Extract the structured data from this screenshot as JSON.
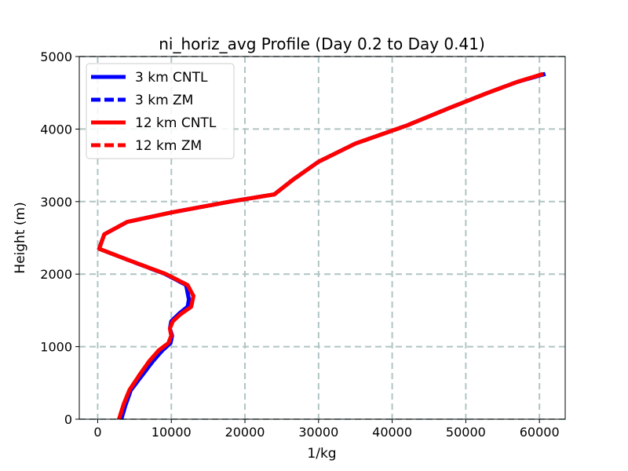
{
  "chart_data": {
    "type": "line",
    "title": "ni_horiz_avg Profile (Day 0.2 to Day 0.41)",
    "xlabel": "1/kg",
    "ylabel": "Height (m)",
    "xlim": [
      -2500,
      63500
    ],
    "ylim": [
      0,
      5000
    ],
    "xticks": [
      0,
      10000,
      20000,
      30000,
      40000,
      50000,
      60000
    ],
    "yticks": [
      0,
      1000,
      2000,
      3000,
      4000,
      5000
    ],
    "grid": true,
    "legend_position": "upper-left",
    "series": [
      {
        "name": "3 km CNTL",
        "color": "#0000ff",
        "style": "solid",
        "x": [
          3200,
          3800,
          4500,
          6000,
          7500,
          8800,
          9900,
          10100,
          9800,
          10000,
          11000,
          12200,
          12400,
          12000,
          9200,
          4000,
          200,
          900,
          4000,
          10000,
          18000,
          24000,
          26500,
          30000,
          35000,
          42000,
          48000,
          53000,
          57000,
          60800
        ],
        "y": [
          0,
          200,
          400,
          600,
          800,
          950,
          1050,
          1150,
          1250,
          1350,
          1450,
          1550,
          1650,
          1850,
          2000,
          2200,
          2350,
          2550,
          2720,
          2850,
          3000,
          3100,
          3300,
          3550,
          3800,
          4050,
          4300,
          4500,
          4650,
          4760
        ]
      },
      {
        "name": "3 km ZM",
        "color": "#0000ff",
        "style": "dashed",
        "x": [
          3200,
          3800,
          4500,
          6000,
          7500,
          8800,
          9900,
          10100,
          9800,
          10000,
          11000,
          12200,
          12400,
          12000,
          9200,
          4000,
          200,
          900,
          4000,
          10000,
          18000,
          24000,
          26500,
          30000,
          35000,
          42000,
          48000,
          53000,
          57000,
          60800
        ],
        "y": [
          0,
          200,
          400,
          600,
          800,
          950,
          1050,
          1150,
          1250,
          1350,
          1450,
          1550,
          1650,
          1850,
          2000,
          2200,
          2350,
          2550,
          2720,
          2850,
          3000,
          3100,
          3300,
          3550,
          3800,
          4050,
          4300,
          4500,
          4650,
          4760
        ]
      },
      {
        "name": "12 km CNTL",
        "color": "#ff0000",
        "style": "solid",
        "x": [
          2900,
          3500,
          4300,
          5600,
          7000,
          8300,
          9600,
          10000,
          9800,
          10200,
          11300,
          12700,
          13000,
          12200,
          9300,
          4000,
          200,
          900,
          4000,
          10000,
          18000,
          24000,
          26500,
          30000,
          35000,
          42000,
          48000,
          53000,
          57000,
          60500
        ],
        "y": [
          0,
          200,
          400,
          600,
          800,
          950,
          1050,
          1150,
          1250,
          1350,
          1450,
          1550,
          1700,
          1850,
          2000,
          2200,
          2350,
          2550,
          2720,
          2850,
          3000,
          3100,
          3300,
          3550,
          3800,
          4050,
          4300,
          4500,
          4650,
          4760
        ]
      },
      {
        "name": "12 km ZM",
        "color": "#ff0000",
        "style": "dashed",
        "x": [
          2900,
          3500,
          4300,
          5600,
          7000,
          8300,
          9600,
          10000,
          9800,
          10200,
          11300,
          12700,
          13000,
          12200,
          9300,
          4000,
          200,
          900,
          4000,
          10000,
          18000,
          24000,
          26500,
          30000,
          35000,
          42000,
          48000,
          53000,
          57000,
          60500
        ],
        "y": [
          0,
          200,
          400,
          600,
          800,
          950,
          1050,
          1150,
          1250,
          1350,
          1450,
          1550,
          1700,
          1850,
          2000,
          2200,
          2350,
          2550,
          2720,
          2850,
          3000,
          3100,
          3300,
          3550,
          3800,
          4050,
          4300,
          4500,
          4650,
          4760
        ]
      }
    ]
  }
}
